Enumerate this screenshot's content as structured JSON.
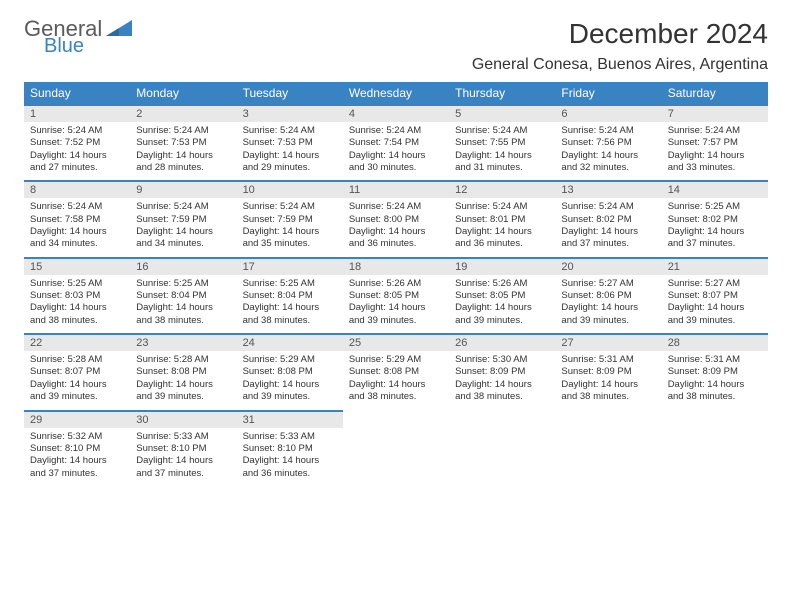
{
  "logo": {
    "text1": "General",
    "text2": "Blue",
    "tri_color": "#3a83c3"
  },
  "title": "December 2024",
  "location": "General Conesa, Buenos Aires, Argentina",
  "header_bg": "#3a83c3",
  "header_fg": "#ffffff",
  "daynum_bg": "#e8e8e8",
  "row_border": "#3a83c3",
  "weekdays": [
    "Sunday",
    "Monday",
    "Tuesday",
    "Wednesday",
    "Thursday",
    "Friday",
    "Saturday"
  ],
  "days": [
    {
      "n": "1",
      "sr": "5:24 AM",
      "ss": "7:52 PM",
      "dl": "14 hours and 27 minutes."
    },
    {
      "n": "2",
      "sr": "5:24 AM",
      "ss": "7:53 PM",
      "dl": "14 hours and 28 minutes."
    },
    {
      "n": "3",
      "sr": "5:24 AM",
      "ss": "7:53 PM",
      "dl": "14 hours and 29 minutes."
    },
    {
      "n": "4",
      "sr": "5:24 AM",
      "ss": "7:54 PM",
      "dl": "14 hours and 30 minutes."
    },
    {
      "n": "5",
      "sr": "5:24 AM",
      "ss": "7:55 PM",
      "dl": "14 hours and 31 minutes."
    },
    {
      "n": "6",
      "sr": "5:24 AM",
      "ss": "7:56 PM",
      "dl": "14 hours and 32 minutes."
    },
    {
      "n": "7",
      "sr": "5:24 AM",
      "ss": "7:57 PM",
      "dl": "14 hours and 33 minutes."
    },
    {
      "n": "8",
      "sr": "5:24 AM",
      "ss": "7:58 PM",
      "dl": "14 hours and 34 minutes."
    },
    {
      "n": "9",
      "sr": "5:24 AM",
      "ss": "7:59 PM",
      "dl": "14 hours and 34 minutes."
    },
    {
      "n": "10",
      "sr": "5:24 AM",
      "ss": "7:59 PM",
      "dl": "14 hours and 35 minutes."
    },
    {
      "n": "11",
      "sr": "5:24 AM",
      "ss": "8:00 PM",
      "dl": "14 hours and 36 minutes."
    },
    {
      "n": "12",
      "sr": "5:24 AM",
      "ss": "8:01 PM",
      "dl": "14 hours and 36 minutes."
    },
    {
      "n": "13",
      "sr": "5:24 AM",
      "ss": "8:02 PM",
      "dl": "14 hours and 37 minutes."
    },
    {
      "n": "14",
      "sr": "5:25 AM",
      "ss": "8:02 PM",
      "dl": "14 hours and 37 minutes."
    },
    {
      "n": "15",
      "sr": "5:25 AM",
      "ss": "8:03 PM",
      "dl": "14 hours and 38 minutes."
    },
    {
      "n": "16",
      "sr": "5:25 AM",
      "ss": "8:04 PM",
      "dl": "14 hours and 38 minutes."
    },
    {
      "n": "17",
      "sr": "5:25 AM",
      "ss": "8:04 PM",
      "dl": "14 hours and 38 minutes."
    },
    {
      "n": "18",
      "sr": "5:26 AM",
      "ss": "8:05 PM",
      "dl": "14 hours and 39 minutes."
    },
    {
      "n": "19",
      "sr": "5:26 AM",
      "ss": "8:05 PM",
      "dl": "14 hours and 39 minutes."
    },
    {
      "n": "20",
      "sr": "5:27 AM",
      "ss": "8:06 PM",
      "dl": "14 hours and 39 minutes."
    },
    {
      "n": "21",
      "sr": "5:27 AM",
      "ss": "8:07 PM",
      "dl": "14 hours and 39 minutes."
    },
    {
      "n": "22",
      "sr": "5:28 AM",
      "ss": "8:07 PM",
      "dl": "14 hours and 39 minutes."
    },
    {
      "n": "23",
      "sr": "5:28 AM",
      "ss": "8:08 PM",
      "dl": "14 hours and 39 minutes."
    },
    {
      "n": "24",
      "sr": "5:29 AM",
      "ss": "8:08 PM",
      "dl": "14 hours and 39 minutes."
    },
    {
      "n": "25",
      "sr": "5:29 AM",
      "ss": "8:08 PM",
      "dl": "14 hours and 38 minutes."
    },
    {
      "n": "26",
      "sr": "5:30 AM",
      "ss": "8:09 PM",
      "dl": "14 hours and 38 minutes."
    },
    {
      "n": "27",
      "sr": "5:31 AM",
      "ss": "8:09 PM",
      "dl": "14 hours and 38 minutes."
    },
    {
      "n": "28",
      "sr": "5:31 AM",
      "ss": "8:09 PM",
      "dl": "14 hours and 38 minutes."
    },
    {
      "n": "29",
      "sr": "5:32 AM",
      "ss": "8:10 PM",
      "dl": "14 hours and 37 minutes."
    },
    {
      "n": "30",
      "sr": "5:33 AM",
      "ss": "8:10 PM",
      "dl": "14 hours and 37 minutes."
    },
    {
      "n": "31",
      "sr": "5:33 AM",
      "ss": "8:10 PM",
      "dl": "14 hours and 36 minutes."
    }
  ],
  "labels": {
    "sunrise": "Sunrise: ",
    "sunset": "Sunset: ",
    "daylight": "Daylight: "
  }
}
